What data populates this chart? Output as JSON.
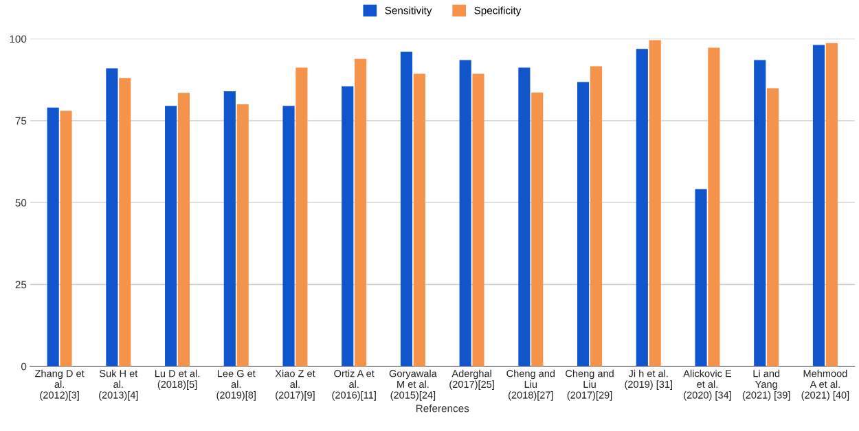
{
  "chart_data": {
    "type": "bar",
    "xlabel": "References",
    "categories": [
      "Zhang D et\nal.\n(2012)[3]",
      "Suk H et\nal.\n(2013)[4]",
      "Lu D et al.\n(2018)[5]",
      "Lee G et\nal.\n(2019)[8]",
      "Xiao Z et\nal.\n(2017)[9]",
      "Ortiz A et\nal.\n(2016)[11]",
      "Goryawala\nM et al.\n(2015)[24]",
      "Aderghal\n(2017)[25]",
      "Cheng and\nLiu\n(2018)[27]",
      "Cheng and\nLiu\n(2017)[29]",
      "Ji h et al.\n(2019) [31]",
      "Alickovic E\net al.\n(2020) [34]",
      "Li and\nYang\n(2021) [39]",
      "Mehmood\nA et al.\n(2021) [40]"
    ],
    "series": [
      {
        "name": "Sensitivity",
        "color": "#1155cc",
        "values": [
          79,
          91,
          79.5,
          84,
          79.5,
          85.5,
          96,
          93.5,
          91.2,
          86.8,
          96.9,
          54.1,
          93.5,
          98.1
        ]
      },
      {
        "name": "Specificity",
        "color": "#f6934a",
        "values": [
          78,
          88,
          83.5,
          80,
          91.2,
          93.9,
          89.3,
          89.3,
          83.6,
          91.6,
          99.6,
          97.3,
          84.9,
          98.7
        ]
      }
    ],
    "ylim": [
      0,
      100
    ],
    "yticks": [
      0,
      25,
      50,
      75,
      100
    ],
    "grid": "y",
    "legend": "top"
  }
}
